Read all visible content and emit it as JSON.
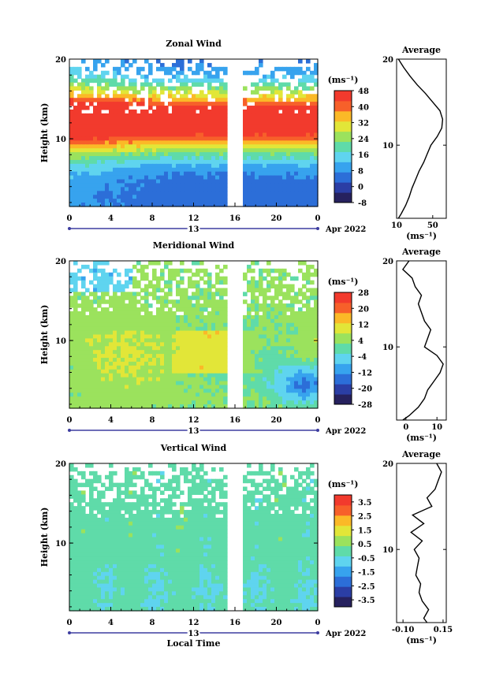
{
  "figure": {
    "xlabel": "Local Time",
    "date_label": "Apr 2022",
    "day_label": "13",
    "units_label": "(ms⁻¹)",
    "average_xlabel": "(ms⁻¹)"
  },
  "chart_data": [
    {
      "type": "heatmap",
      "title": "Zonal Wind",
      "ylabel": "Height (km)",
      "xlabel": "",
      "xticks": [
        "0",
        "4",
        "8",
        "12",
        "16",
        "20",
        "0"
      ],
      "yticks": [
        "10",
        "20"
      ],
      "xlim": [
        0,
        24
      ],
      "ylim": [
        1.5,
        20
      ],
      "colorbar": {
        "ticks": [
          "-8",
          "0",
          "8",
          "16",
          "24",
          "32",
          "40",
          "48"
        ],
        "range": [
          -8,
          48
        ]
      },
      "data_gap_hours": [
        15.1,
        16.9
      ],
      "average_profile": {
        "title": "Average",
        "xticks": [
          "10",
          "50"
        ],
        "xlim": [
          10,
          65
        ],
        "yticks": [
          "10",
          "20"
        ],
        "height_km": [
          1.5,
          2,
          3,
          4,
          5,
          6,
          7,
          8,
          9,
          10,
          11,
          12,
          13,
          14,
          15,
          16,
          17,
          18,
          19,
          20
        ],
        "values": [
          12,
          15,
          20,
          24,
          27,
          31,
          35,
          40,
          44,
          48,
          55,
          60,
          61,
          58,
          50,
          42,
          33,
          25,
          18,
          12
        ]
      }
    },
    {
      "type": "heatmap",
      "title": "Meridional Wind",
      "ylabel": "Height (km)",
      "xlabel": "",
      "xticks": [
        "0",
        "4",
        "8",
        "12",
        "16",
        "20",
        "0"
      ],
      "yticks": [
        "10",
        "20"
      ],
      "xlim": [
        0,
        24
      ],
      "ylim": [
        1.5,
        20
      ],
      "colorbar": {
        "ticks": [
          "-28",
          "-20",
          "-12",
          "-4",
          "4",
          "12",
          "20",
          "28"
        ],
        "range": [
          -28,
          28
        ]
      },
      "data_gap_hours": [
        15.1,
        16.9
      ],
      "average_profile": {
        "title": "Average",
        "xticks": [
          "0",
          "10"
        ],
        "xlim": [
          -3,
          13
        ],
        "yticks": [
          "10",
          "20"
        ],
        "height_km": [
          1.5,
          2,
          3,
          4,
          5,
          6,
          7,
          8,
          9,
          10,
          11,
          12,
          13,
          14,
          15,
          16,
          17,
          18,
          19,
          20
        ],
        "values": [
          -1,
          1,
          4,
          6,
          7,
          9,
          11,
          12,
          10,
          6,
          7,
          8,
          6,
          5,
          4,
          5,
          3,
          2,
          -1,
          1
        ]
      }
    },
    {
      "type": "heatmap",
      "title": "Vertical Wind",
      "ylabel": "Height (km)",
      "xlabel": "Local Time",
      "xticks": [
        "0",
        "4",
        "8",
        "12",
        "16",
        "20",
        "0"
      ],
      "yticks": [
        "10",
        "20"
      ],
      "xlim": [
        0,
        24
      ],
      "ylim": [
        1.5,
        20
      ],
      "colorbar": {
        "ticks": [
          "-3.5",
          "-2.5",
          "-1.5",
          "-0.5",
          "0.5",
          "1.5",
          "2.5",
          "3.5"
        ],
        "range": [
          -4,
          4
        ]
      },
      "data_gap_hours": [
        15.1,
        16.9
      ],
      "average_profile": {
        "title": "Average",
        "xticks": [
          "-0.10",
          "0.15"
        ],
        "xlim": [
          -0.14,
          0.17
        ],
        "yticks": [
          "10",
          "20"
        ],
        "height_km": [
          1.5,
          2,
          3,
          4,
          5,
          6,
          7,
          8,
          9,
          10,
          11,
          12,
          13,
          14,
          15,
          16,
          17,
          18,
          19,
          20
        ],
        "values": [
          0.05,
          0.03,
          0.06,
          0.02,
          0.0,
          0.01,
          -0.02,
          -0.01,
          0.0,
          -0.03,
          0.02,
          -0.05,
          0.03,
          -0.04,
          0.08,
          0.05,
          0.1,
          0.12,
          0.14,
          0.11
        ]
      }
    }
  ]
}
